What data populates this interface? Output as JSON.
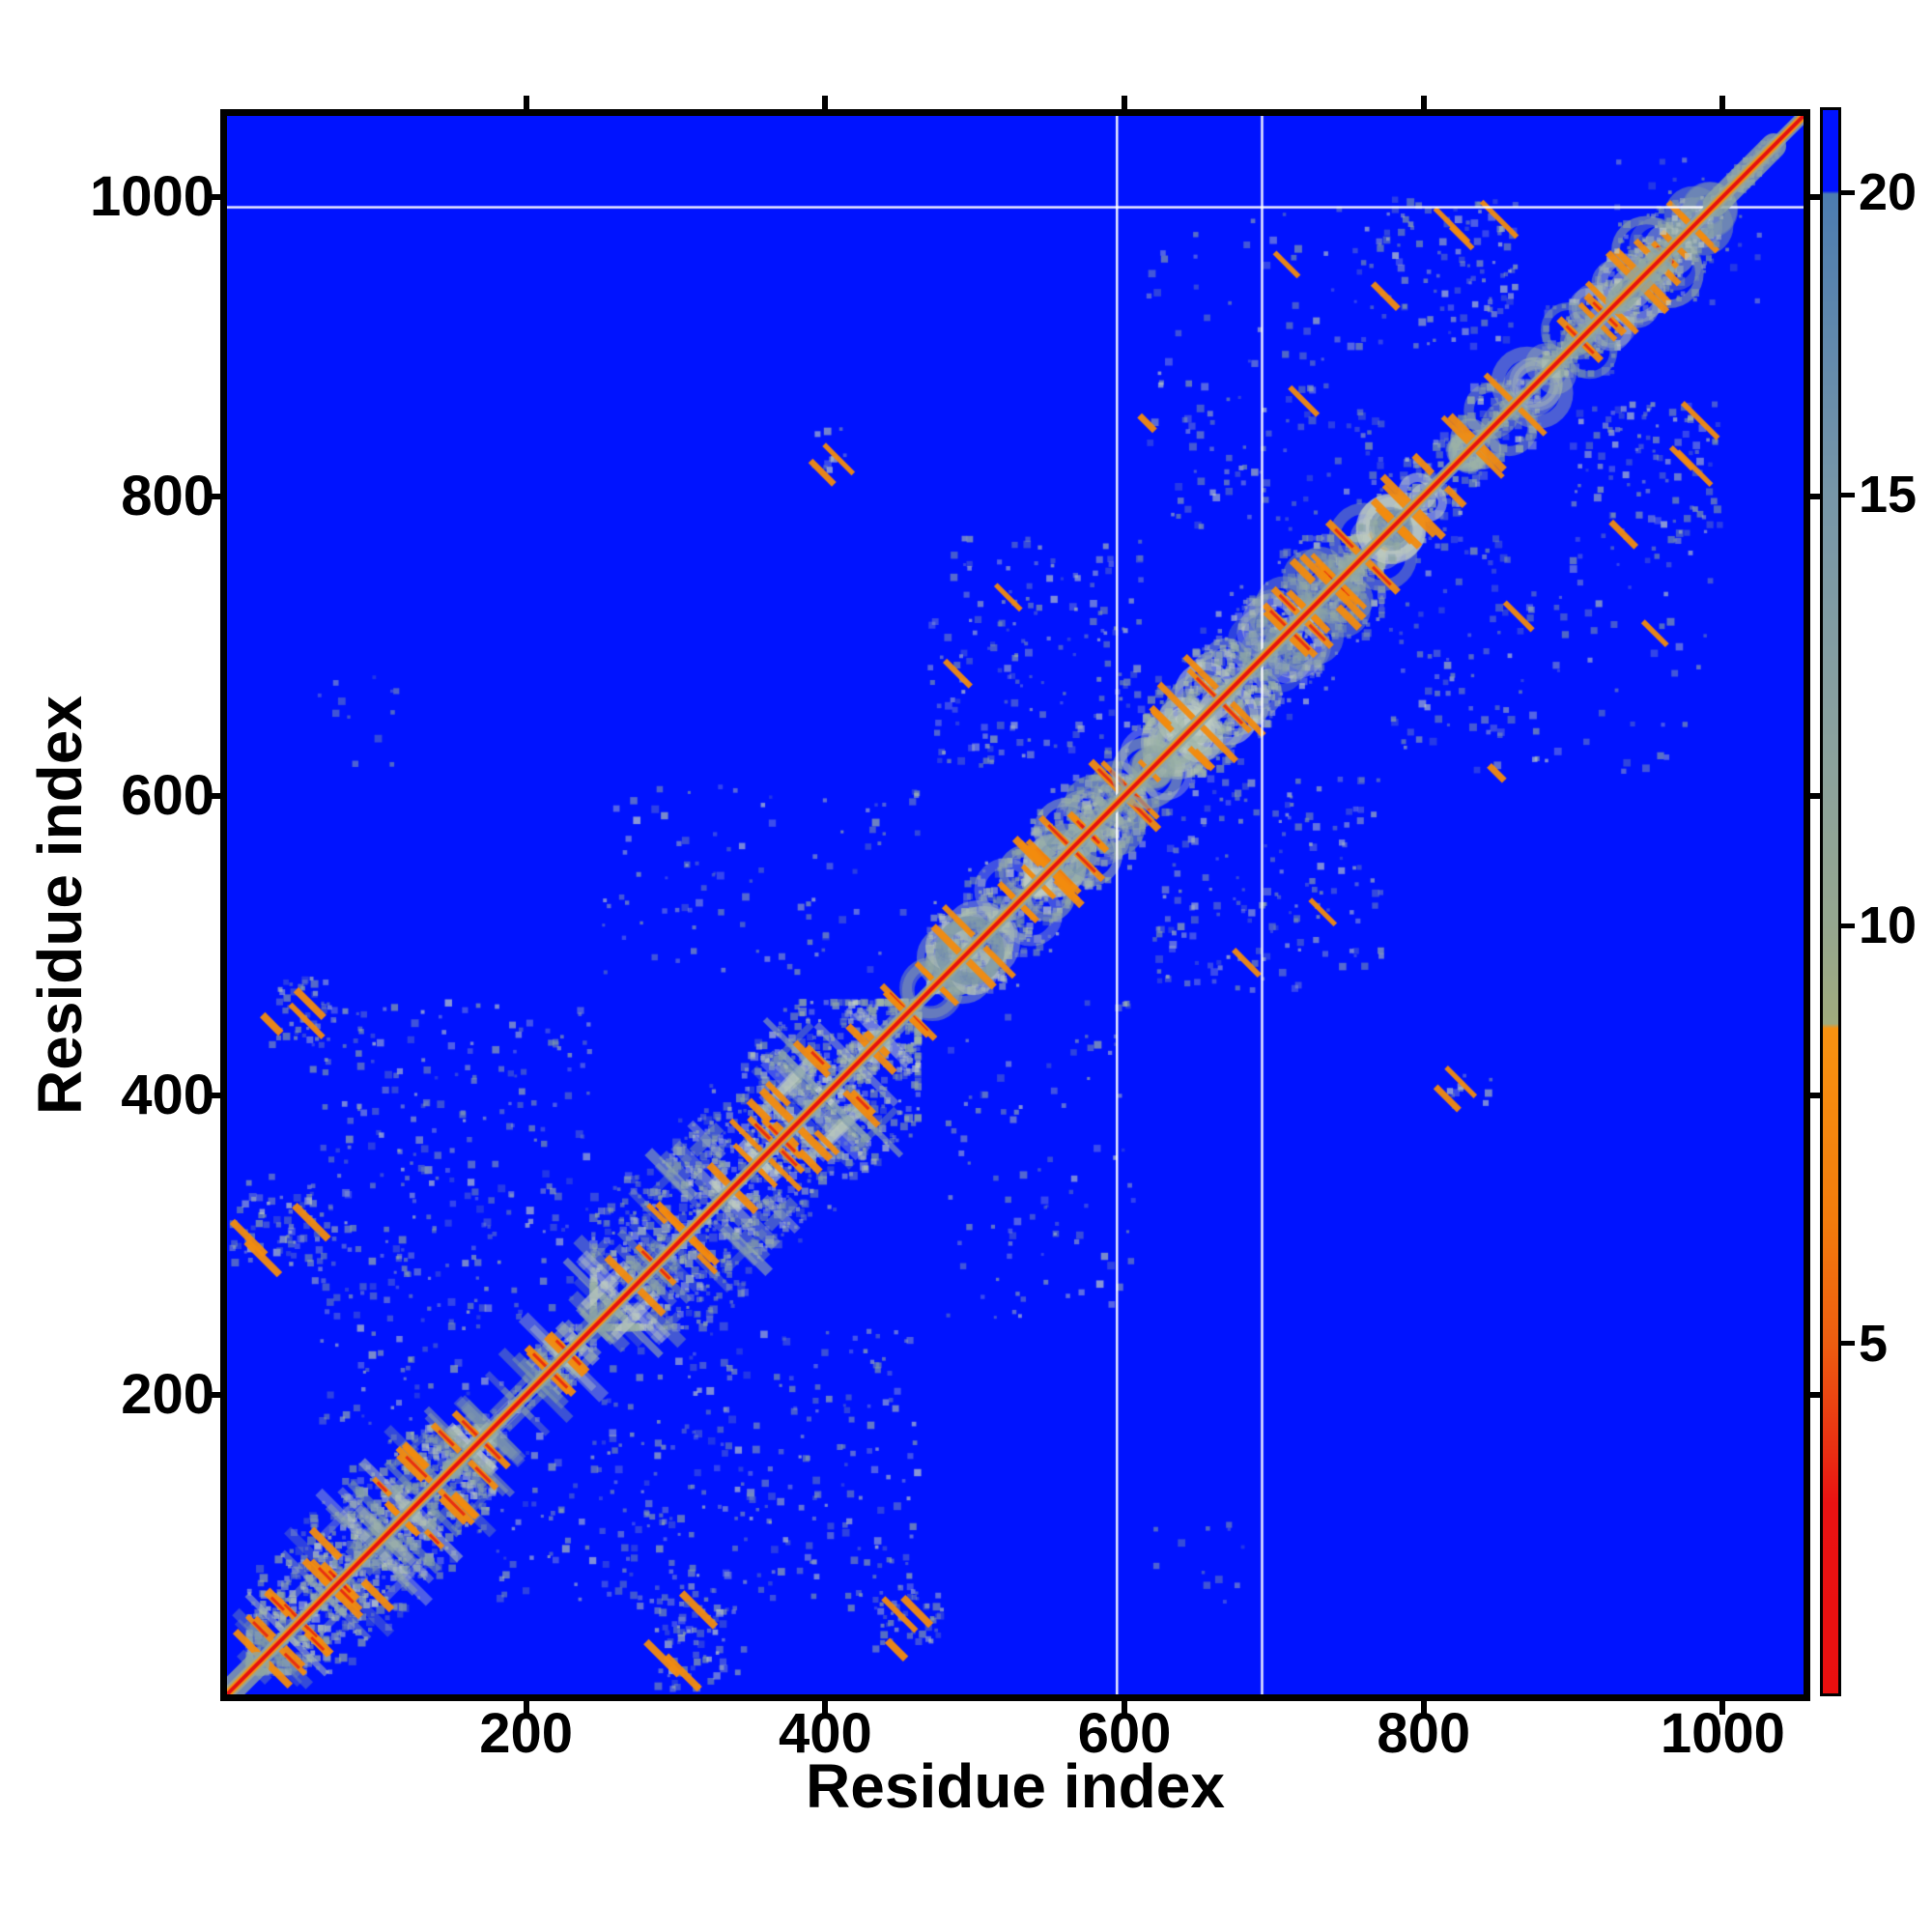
{
  "figure": {
    "xlabel": "Residue index",
    "ylabel": "Residue index"
  },
  "chart_data": {
    "type": "heatmap",
    "title": "",
    "xlabel": "Residue index",
    "ylabel": "Residue index",
    "x_range": [
      0,
      1054
    ],
    "y_range": [
      0,
      1054
    ],
    "x_tick_values": [
      200,
      400,
      600,
      800,
      1000
    ],
    "y_tick_values": [
      200,
      400,
      600,
      800,
      1000
    ],
    "colorbar": {
      "tick_values": [
        20,
        15,
        10,
        5
      ],
      "tick_fractions_from_top": [
        0.052,
        0.243,
        0.515,
        0.779
      ],
      "gradient_stops": [
        {
          "f": 0.0,
          "c": "#0013ff"
        },
        {
          "f": 0.051,
          "c": "#0013ff"
        },
        {
          "f": 0.053,
          "c": "#4c7cb0"
        },
        {
          "f": 0.243,
          "c": "#7796a8"
        },
        {
          "f": 0.4,
          "c": "#8aa19e"
        },
        {
          "f": 0.515,
          "c": "#95a68f"
        },
        {
          "f": 0.577,
          "c": "#a0ab7d"
        },
        {
          "f": 0.58,
          "c": "#f79210"
        },
        {
          "f": 0.7,
          "c": "#f37c0c"
        },
        {
          "f": 0.779,
          "c": "#ee5d10"
        },
        {
          "f": 0.845,
          "c": "#e93012"
        },
        {
          "f": 0.88,
          "c": "#e91212"
        },
        {
          "f": 1.0,
          "c": "#e90f0f"
        }
      ]
    },
    "palette": {
      "background": "#0013ff",
      "far_texture": [
        "#8fa6a3",
        "#9db3a7",
        "#7c98a8",
        "#b0c0b4",
        "#c2cfc4"
      ],
      "mid_orange": "#f28b0e",
      "near_red": "#e51212",
      "diag_orange": "#f59410",
      "diag_red": "#e51111",
      "separator": "#ffffff"
    },
    "diagonal": {
      "from": 0,
      "to": 1054,
      "fat_segments": [
        [
          0,
          20
        ],
        [
          930,
          958
        ],
        [
          995,
          1034
        ]
      ]
    },
    "separator_lines": {
      "vertical_x": [
        595,
        692
      ],
      "horizontal_y": [
        993
      ]
    },
    "domains": [
      {
        "start": 15,
        "end": 178,
        "style": "xgrid",
        "density": 1.0
      },
      {
        "start": 178,
        "end": 245,
        "style": "xgrid",
        "density": 0.55
      },
      {
        "start": 245,
        "end": 462,
        "style": "xgrid",
        "density": 0.85
      },
      {
        "start": 470,
        "end": 612,
        "style": "rings",
        "density": 0.9
      },
      {
        "start": 615,
        "end": 772,
        "style": "rings",
        "density": 1.0
      },
      {
        "start": 778,
        "end": 876,
        "style": "rings",
        "density": 0.7
      },
      {
        "start": 882,
        "end": 992,
        "style": "rings",
        "density": 0.75
      },
      {
        "start": 995,
        "end": 1036,
        "style": "blob",
        "density": 0.9
      }
    ],
    "off_diagonal_blocks": [
      {
        "x": [
          29,
          74
        ],
        "y": [
          432,
          478
        ],
        "intensity": 0.8,
        "orange": 3
      },
      {
        "x": [
          287,
          347
        ],
        "y": [
          2,
          64
        ],
        "intensity": 0.75,
        "orange": 3
      },
      {
        "x": [
          180,
          300
        ],
        "y": [
          60,
          178
        ],
        "intensity": 0.22,
        "orange": 0
      },
      {
        "x": [
          250,
          462
        ],
        "y": [
          55,
          245
        ],
        "intensity": 0.14,
        "orange": 0
      },
      {
        "x": [
          60,
          240
        ],
        "y": [
          300,
          460
        ],
        "intensity": 0.1,
        "orange": 0
      },
      {
        "x": [
          480,
          612
        ],
        "y": [
          250,
          462
        ],
        "intensity": 0.12,
        "orange": 0
      },
      {
        "x": [
          620,
          772
        ],
        "y": [
          470,
          612
        ],
        "intensity": 0.3,
        "orange": 2
      },
      {
        "x": [
          778,
          876
        ],
        "y": [
          615,
          772
        ],
        "intensity": 0.22,
        "orange": 2
      },
      {
        "x": [
          900,
          1000
        ],
        "y": [
          770,
          862
        ],
        "intensity": 0.45,
        "orange": 4
      },
      {
        "x": [
          882,
          992
        ],
        "y": [
          615,
          772
        ],
        "intensity": 0.1,
        "orange": 1
      },
      {
        "x": [
          390,
          415
        ],
        "y": [
          815,
          845
        ],
        "intensity": 0.5,
        "orange": 2
      },
      {
        "x": [
          620,
          680
        ],
        "y": [
          55,
          120
        ],
        "intensity": 0.12,
        "orange": 0
      },
      {
        "x": [
          945,
          1030
        ],
        "y": [
          928,
          988
        ],
        "intensity": 0.25,
        "orange": 1
      }
    ]
  }
}
